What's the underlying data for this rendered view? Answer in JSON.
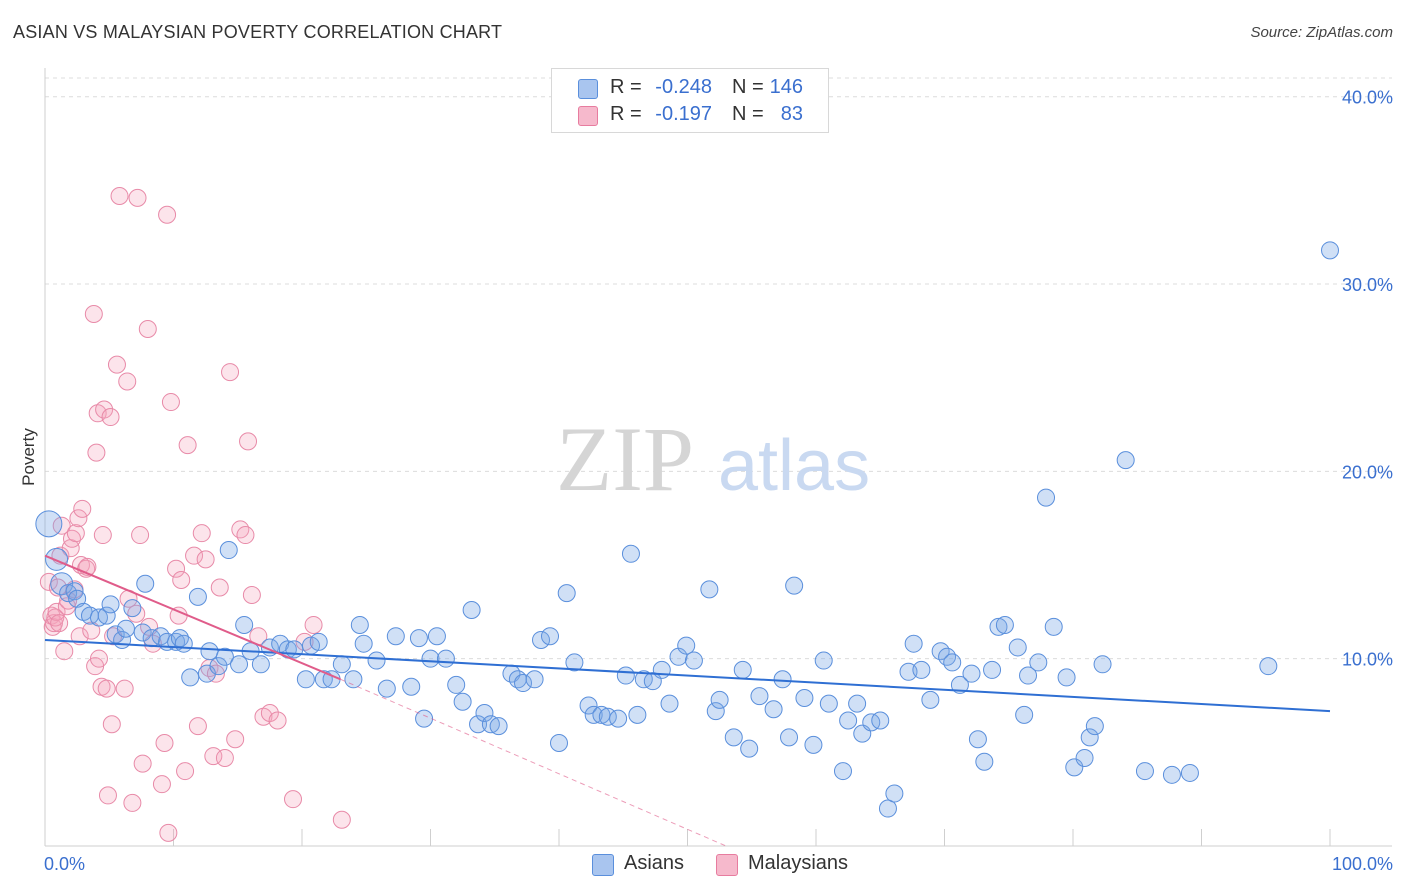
{
  "header": {
    "title": "ASIAN VS MALAYSIAN POVERTY CORRELATION CHART",
    "source": "Source: ZipAtlas.com"
  },
  "watermark": {
    "zip": "ZIP",
    "atlas": "atlas"
  },
  "legend": {
    "rows": [
      {
        "r_label": "R =",
        "r_value": "-0.248",
        "n_label": "N =",
        "n_value": "146",
        "fill": "#a9c5ef",
        "stroke": "#5a8fdc"
      },
      {
        "r_label": "R =",
        "r_value": "-0.197",
        "n_label": "N =",
        "n_value": "83",
        "fill": "#f6b9cc",
        "stroke": "#e77c9f"
      }
    ]
  },
  "bottom_legend": {
    "asians": "Asians",
    "malaysians": "Malaysians"
  },
  "colors": {
    "asian_fill": "rgba(120,165,230,0.35)",
    "asian_stroke": "#5a8fdc",
    "asian_line": "#2f6fd3",
    "malay_fill": "rgba(245,165,190,0.30)",
    "malay_stroke": "#e88aa8",
    "malay_line": "#e05c8a",
    "grid": "#dcdcdc",
    "tick_label": "#3a6fcf"
  },
  "chart_data": {
    "type": "scatter",
    "title": "ASIAN VS MALAYSIAN POVERTY CORRELATION CHART",
    "xlabel": "",
    "ylabel": "Poverty",
    "xlim": [
      0,
      100
    ],
    "ylim": [
      0,
      41
    ],
    "x_tick_labels": [
      {
        "value": 0,
        "label": "0.0%"
      },
      {
        "value": 100,
        "label": "100.0%"
      }
    ],
    "y_tick_labels": [
      {
        "value": 10,
        "label": "10.0%"
      },
      {
        "value": 20,
        "label": "20.0%"
      },
      {
        "value": 30,
        "label": "30.0%"
      },
      {
        "value": 40,
        "label": "40.0%"
      }
    ],
    "grid": true,
    "legend_position": "top-center",
    "series": [
      {
        "name": "Asians",
        "r": -0.248,
        "n": 146,
        "trend": {
          "x": [
            0,
            100
          ],
          "y": [
            11.0,
            7.2
          ]
        },
        "points": [
          [
            0.3,
            17.2
          ],
          [
            0.9,
            15.3
          ],
          [
            1.3,
            14.0
          ],
          [
            1.8,
            13.5
          ],
          [
            2.3,
            13.6
          ],
          [
            2.5,
            13.2
          ],
          [
            3.0,
            12.5
          ],
          [
            3.5,
            12.3
          ],
          [
            4.2,
            12.2
          ],
          [
            4.8,
            12.3
          ],
          [
            5.1,
            12.9
          ],
          [
            5.5,
            11.3
          ],
          [
            6.0,
            11.0
          ],
          [
            6.3,
            11.6
          ],
          [
            6.8,
            12.7
          ],
          [
            7.6,
            11.4
          ],
          [
            7.8,
            14.0
          ],
          [
            8.3,
            11.1
          ],
          [
            9.0,
            11.2
          ],
          [
            9.5,
            10.9
          ],
          [
            10.2,
            10.9
          ],
          [
            10.5,
            11.1
          ],
          [
            10.8,
            10.8
          ],
          [
            11.3,
            9.0
          ],
          [
            11.9,
            13.3
          ],
          [
            12.6,
            9.2
          ],
          [
            12.8,
            10.4
          ],
          [
            13.5,
            9.6
          ],
          [
            14.0,
            10.1
          ],
          [
            14.3,
            15.8
          ],
          [
            15.1,
            9.7
          ],
          [
            15.5,
            11.8
          ],
          [
            16.0,
            10.4
          ],
          [
            16.8,
            9.7
          ],
          [
            17.5,
            10.6
          ],
          [
            18.3,
            10.8
          ],
          [
            18.9,
            10.5
          ],
          [
            19.4,
            10.5
          ],
          [
            20.3,
            8.9
          ],
          [
            20.7,
            10.7
          ],
          [
            21.3,
            10.9
          ],
          [
            21.7,
            8.9
          ],
          [
            22.3,
            8.9
          ],
          [
            23.1,
            9.7
          ],
          [
            24.0,
            8.9
          ],
          [
            24.5,
            11.8
          ],
          [
            24.8,
            10.8
          ],
          [
            25.8,
            9.9
          ],
          [
            26.6,
            8.4
          ],
          [
            27.3,
            11.2
          ],
          [
            28.5,
            8.5
          ],
          [
            29.1,
            11.1
          ],
          [
            29.5,
            6.8
          ],
          [
            30.0,
            10.0
          ],
          [
            30.5,
            11.2
          ],
          [
            31.2,
            10.0
          ],
          [
            32.0,
            8.6
          ],
          [
            32.5,
            7.7
          ],
          [
            33.2,
            12.6
          ],
          [
            33.7,
            6.5
          ],
          [
            34.2,
            7.1
          ],
          [
            34.7,
            6.5
          ],
          [
            35.3,
            6.4
          ],
          [
            36.3,
            9.2
          ],
          [
            36.8,
            8.9
          ],
          [
            37.2,
            8.7
          ],
          [
            38.1,
            8.9
          ],
          [
            38.6,
            11.0
          ],
          [
            39.3,
            11.2
          ],
          [
            40.0,
            5.5
          ],
          [
            40.6,
            13.5
          ],
          [
            41.2,
            9.8
          ],
          [
            42.3,
            7.5
          ],
          [
            42.7,
            7.0
          ],
          [
            43.3,
            7.0
          ],
          [
            43.8,
            6.9
          ],
          [
            44.6,
            6.8
          ],
          [
            45.2,
            9.1
          ],
          [
            45.6,
            15.6
          ],
          [
            46.1,
            7.0
          ],
          [
            46.6,
            8.9
          ],
          [
            47.3,
            8.8
          ],
          [
            48.0,
            9.4
          ],
          [
            48.6,
            7.6
          ],
          [
            49.3,
            10.1
          ],
          [
            49.9,
            10.7
          ],
          [
            50.5,
            9.9
          ],
          [
            51.7,
            13.7
          ],
          [
            52.2,
            7.2
          ],
          [
            52.5,
            7.8
          ],
          [
            53.6,
            5.8
          ],
          [
            54.3,
            9.4
          ],
          [
            54.8,
            5.2
          ],
          [
            55.6,
            8.0
          ],
          [
            56.7,
            7.3
          ],
          [
            57.4,
            8.9
          ],
          [
            57.9,
            5.8
          ],
          [
            58.3,
            13.9
          ],
          [
            59.1,
            7.9
          ],
          [
            59.8,
            5.4
          ],
          [
            60.6,
            9.9
          ],
          [
            61.0,
            7.6
          ],
          [
            62.1,
            4.0
          ],
          [
            62.5,
            6.7
          ],
          [
            63.2,
            7.6
          ],
          [
            63.6,
            6.0
          ],
          [
            64.3,
            6.6
          ],
          [
            65.0,
            6.7
          ],
          [
            65.6,
            2.0
          ],
          [
            66.1,
            2.8
          ],
          [
            67.2,
            9.3
          ],
          [
            67.6,
            10.8
          ],
          [
            68.2,
            9.4
          ],
          [
            68.9,
            7.8
          ],
          [
            69.7,
            10.4
          ],
          [
            70.2,
            10.1
          ],
          [
            70.6,
            9.8
          ],
          [
            71.2,
            8.6
          ],
          [
            72.1,
            9.2
          ],
          [
            72.6,
            5.7
          ],
          [
            73.1,
            4.5
          ],
          [
            73.7,
            9.4
          ],
          [
            74.2,
            11.7
          ],
          [
            74.7,
            11.8
          ],
          [
            75.7,
            10.6
          ],
          [
            76.2,
            7.0
          ],
          [
            76.5,
            9.1
          ],
          [
            77.3,
            9.8
          ],
          [
            77.9,
            18.6
          ],
          [
            78.5,
            11.7
          ],
          [
            79.5,
            9.0
          ],
          [
            80.1,
            4.2
          ],
          [
            80.9,
            4.7
          ],
          [
            81.3,
            5.8
          ],
          [
            81.7,
            6.4
          ],
          [
            82.3,
            9.7
          ],
          [
            84.1,
            20.6
          ],
          [
            85.6,
            4.0
          ],
          [
            87.7,
            3.8
          ],
          [
            89.1,
            3.9
          ],
          [
            95.2,
            9.6
          ],
          [
            100.0,
            31.8
          ]
        ]
      },
      {
        "name": "Malaysians",
        "r": -0.197,
        "n": 83,
        "trend": {
          "x": [
            0,
            23
          ],
          "y": [
            15.5,
            8.9
          ]
        },
        "trend_dashed": {
          "x": [
            23,
            53
          ],
          "y": [
            8.9,
            0
          ]
        },
        "points": [
          [
            0.3,
            14.1
          ],
          [
            0.5,
            12.3
          ],
          [
            0.6,
            11.7
          ],
          [
            0.7,
            11.9
          ],
          [
            0.8,
            12.2
          ],
          [
            0.9,
            12.5
          ],
          [
            1.0,
            13.8
          ],
          [
            1.1,
            11.9
          ],
          [
            1.2,
            15.5
          ],
          [
            1.3,
            17.1
          ],
          [
            1.5,
            10.4
          ],
          [
            1.7,
            12.8
          ],
          [
            1.8,
            13.1
          ],
          [
            2.0,
            15.9
          ],
          [
            2.1,
            16.4
          ],
          [
            2.3,
            13.7
          ],
          [
            2.4,
            16.7
          ],
          [
            2.6,
            17.5
          ],
          [
            2.7,
            11.2
          ],
          [
            2.8,
            15.0
          ],
          [
            2.9,
            18.0
          ],
          [
            3.2,
            14.8
          ],
          [
            3.3,
            14.9
          ],
          [
            3.6,
            11.5
          ],
          [
            3.8,
            28.4
          ],
          [
            3.9,
            9.6
          ],
          [
            4.0,
            21.0
          ],
          [
            4.1,
            23.1
          ],
          [
            4.2,
            10.0
          ],
          [
            4.4,
            8.5
          ],
          [
            4.5,
            16.6
          ],
          [
            4.6,
            23.3
          ],
          [
            4.8,
            8.4
          ],
          [
            4.9,
            2.7
          ],
          [
            5.1,
            22.9
          ],
          [
            5.2,
            6.5
          ],
          [
            5.3,
            11.2
          ],
          [
            5.6,
            25.7
          ],
          [
            5.8,
            34.7
          ],
          [
            6.2,
            8.4
          ],
          [
            6.4,
            24.8
          ],
          [
            6.5,
            13.2
          ],
          [
            6.8,
            2.3
          ],
          [
            7.1,
            12.4
          ],
          [
            7.2,
            34.6
          ],
          [
            7.4,
            16.6
          ],
          [
            7.6,
            4.4
          ],
          [
            8.0,
            27.6
          ],
          [
            8.1,
            11.7
          ],
          [
            8.4,
            10.8
          ],
          [
            9.1,
            3.3
          ],
          [
            9.3,
            5.5
          ],
          [
            9.5,
            33.7
          ],
          [
            9.6,
            0.7
          ],
          [
            9.8,
            23.7
          ],
          [
            10.2,
            14.8
          ],
          [
            10.4,
            12.3
          ],
          [
            10.6,
            14.2
          ],
          [
            10.9,
            4.0
          ],
          [
            11.1,
            21.4
          ],
          [
            11.6,
            15.5
          ],
          [
            11.9,
            6.4
          ],
          [
            12.2,
            16.7
          ],
          [
            12.5,
            15.3
          ],
          [
            12.8,
            9.5
          ],
          [
            13.1,
            4.8
          ],
          [
            13.3,
            9.2
          ],
          [
            13.6,
            13.8
          ],
          [
            14.0,
            4.7
          ],
          [
            14.4,
            25.3
          ],
          [
            14.8,
            5.7
          ],
          [
            15.2,
            16.9
          ],
          [
            15.6,
            16.6
          ],
          [
            15.8,
            21.6
          ],
          [
            16.1,
            13.4
          ],
          [
            16.6,
            11.2
          ],
          [
            17.0,
            6.9
          ],
          [
            17.5,
            7.1
          ],
          [
            18.1,
            6.7
          ],
          [
            19.3,
            2.5
          ],
          [
            20.2,
            10.9
          ],
          [
            20.9,
            11.8
          ],
          [
            23.1,
            1.4
          ]
        ]
      }
    ]
  }
}
